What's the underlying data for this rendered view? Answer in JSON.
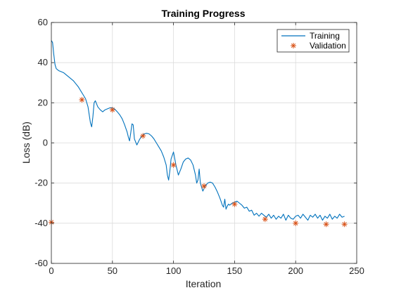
{
  "chart_data": {
    "type": "line",
    "title": "Training Progress",
    "xlabel": "Iteration",
    "ylabel": "Loss (dB)",
    "xlim": [
      0,
      250
    ],
    "ylim": [
      -60,
      60
    ],
    "xticks": [
      0,
      50,
      100,
      150,
      200,
      250
    ],
    "yticks": [
      -60,
      -40,
      -20,
      0,
      20,
      40,
      60
    ],
    "xtick_labels": [
      "0",
      "50",
      "100",
      "150",
      "200",
      "250"
    ],
    "ytick_labels": [
      "-60",
      "-40",
      "-20",
      "0",
      "20",
      "40",
      "60"
    ],
    "grid": true,
    "legend_position": "top-right",
    "series": [
      {
        "name": "Training",
        "style": "line",
        "color": "#0072BD",
        "x": [
          0,
          1,
          2,
          3,
          4,
          6,
          8,
          10,
          12,
          14,
          16,
          18,
          20,
          22,
          24,
          26,
          28,
          30,
          31,
          32,
          33,
          34,
          35,
          36,
          38,
          40,
          42,
          44,
          46,
          48,
          50,
          52,
          54,
          56,
          58,
          60,
          62,
          63,
          64,
          65,
          66,
          67,
          68,
          70,
          72,
          74,
          76,
          78,
          80,
          82,
          84,
          86,
          88,
          90,
          92,
          94,
          95,
          96,
          97,
          98,
          100,
          102,
          104,
          106,
          108,
          110,
          112,
          114,
          116,
          118,
          119,
          120,
          121,
          122,
          124,
          126,
          128,
          130,
          132,
          134,
          136,
          138,
          140,
          141,
          142,
          143,
          144,
          145,
          146,
          148,
          150,
          152,
          154,
          156,
          158,
          160,
          162,
          164,
          166,
          168,
          170,
          172,
          174,
          176,
          178,
          180,
          182,
          184,
          186,
          188,
          190,
          192,
          194,
          196,
          198,
          200,
          202,
          204,
          206,
          208,
          210,
          212,
          214,
          216,
          218,
          220,
          222,
          224,
          226,
          228,
          230,
          232,
          234,
          236,
          238,
          240
        ],
        "y": [
          51,
          50,
          44,
          39,
          37,
          36,
          35.5,
          35,
          34,
          33,
          32,
          31,
          29.5,
          28,
          26,
          24,
          22,
          18,
          14,
          10,
          8,
          13,
          20,
          21,
          18,
          16.5,
          15.5,
          16.5,
          17,
          17.5,
          17.5,
          16.8,
          15.5,
          14,
          12,
          9,
          5.5,
          3,
          1,
          5,
          9.5,
          9,
          2,
          -1,
          1.5,
          3.5,
          4.5,
          4.8,
          4.5,
          3.5,
          2,
          0,
          -2,
          -4,
          -7,
          -11,
          -16,
          -18.5,
          -14,
          -8,
          -4.5,
          -11,
          -16,
          -13,
          -9.5,
          -8,
          -7.5,
          -8.5,
          -11,
          -16,
          -20,
          -18.5,
          -13,
          -20,
          -24,
          -21.5,
          -20,
          -19.5,
          -20,
          -22,
          -24.5,
          -27.5,
          -31,
          -32,
          -28,
          -33,
          -31.5,
          -30.5,
          -31,
          -30,
          -29.5,
          -29,
          -30,
          -31,
          -32.5,
          -32,
          -34,
          -33.5,
          -36,
          -35,
          -36.5,
          -35,
          -36,
          -37,
          -35.5,
          -37.5,
          -36,
          -38,
          -36.5,
          -37.5,
          -35.5,
          -38.5,
          -36,
          -37.5,
          -38,
          -36.5,
          -36,
          -37.5,
          -35.5,
          -37,
          -38.5,
          -36,
          -37,
          -35.5,
          -37.5,
          -36,
          -38.5,
          -36.5,
          -37.5,
          -35.5,
          -38,
          -36.5,
          -37.5,
          -35.5,
          -37,
          -36.5
        ]
      },
      {
        "name": "Validation",
        "style": "markers",
        "marker": "asterisk",
        "color": "#D95319",
        "x": [
          0,
          25,
          50,
          75,
          100,
          125,
          150,
          175,
          200,
          225,
          240
        ],
        "y": [
          -39.5,
          21.5,
          16.5,
          3.5,
          -11,
          -21.5,
          -30.5,
          -38,
          -40,
          -40.5,
          -40.5
        ]
      }
    ]
  }
}
